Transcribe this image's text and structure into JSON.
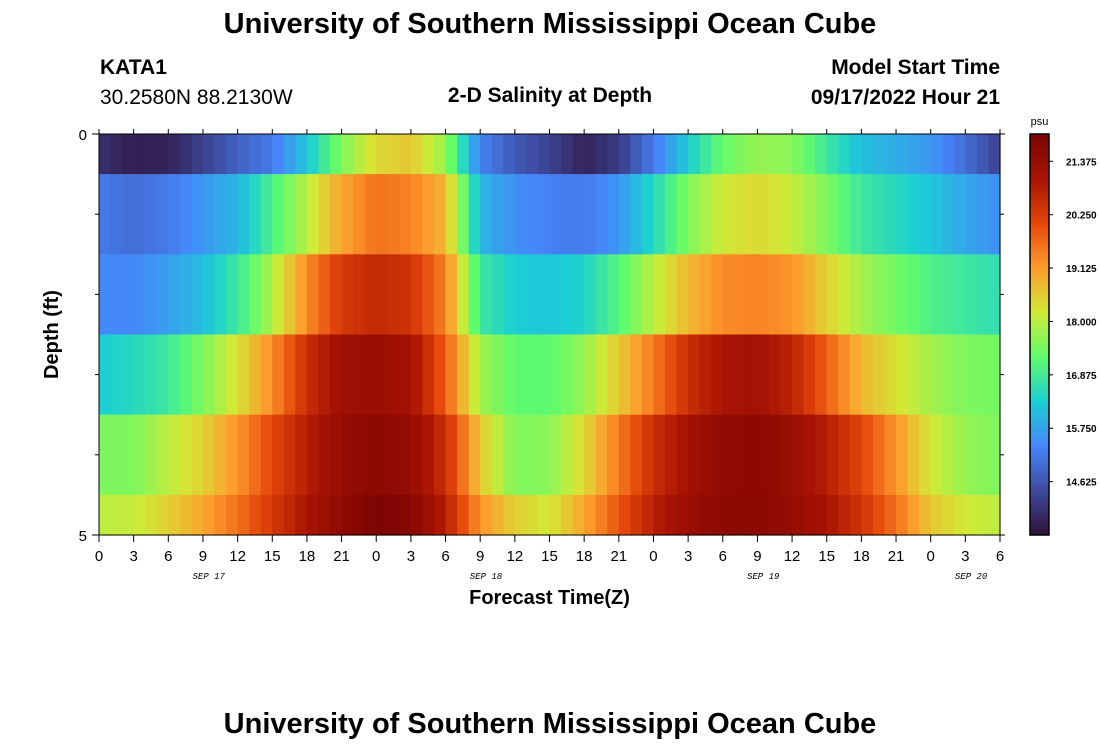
{
  "page": {
    "title_top": "University of Southern Mississippi Ocean Cube",
    "title_bottom": "University of Southern Mississippi Ocean Cube",
    "station": "KATA1",
    "coords": "30.2580N  88.2130W",
    "subtitle": "2-D Salinity at Depth",
    "model_start_label": "Model Start Time",
    "model_start_value": "09/17/2022 Hour 21"
  },
  "chart_data": {
    "type": "heatmap",
    "title": "2-D Salinity at Depth",
    "xlabel": "Forecast Time(Z)",
    "ylabel": "Depth (ft)",
    "x_start_hour": 0,
    "x_end_hour": 78,
    "x_tick_step_hours": 3,
    "x_tick_labels": [
      "0",
      "3",
      "6",
      "9",
      "12",
      "15",
      "18",
      "21",
      "0",
      "3",
      "6",
      "9",
      "12",
      "15",
      "18",
      "21",
      "0",
      "3",
      "6",
      "9",
      "12",
      "15",
      "18",
      "21",
      "0",
      "3",
      "6"
    ],
    "date_labels": [
      {
        "text": "SEP 17",
        "hour": 9.5
      },
      {
        "text": "SEP 18",
        "hour": 33.5
      },
      {
        "text": "SEP 19",
        "hour": 57.5
      },
      {
        "text": "SEP 20",
        "hour": 75.5
      }
    ],
    "y_range": [
      0,
      5
    ],
    "y_tick_labels": [
      {
        "value": 0,
        "text": "0"
      },
      {
        "value": 5,
        "text": "5"
      }
    ],
    "y_minor_ticks": [
      1,
      2,
      3,
      4
    ],
    "depth_bands": [
      0,
      0.5,
      1.5,
      2.5,
      3.5,
      4.5,
      5
    ],
    "anchor_hours": [
      0,
      3,
      6,
      9,
      12,
      15,
      18,
      21,
      24,
      27,
      30,
      33,
      36,
      39,
      42,
      45,
      48,
      51,
      54,
      57,
      60,
      63,
      66,
      69,
      72,
      75,
      78
    ],
    "salinity_rows": [
      [
        14.0,
        13.7,
        13.8,
        14.3,
        14.8,
        15.2,
        16.2,
        17.5,
        18.4,
        18.6,
        17.7,
        15.3,
        14.7,
        14.3,
        13.8,
        14.2,
        15.2,
        16.3,
        17.3,
        17.7,
        17.6,
        16.8,
        16.1,
        15.9,
        15.6,
        15.0,
        14.3
      ],
      [
        15.2,
        15.0,
        15.2,
        15.6,
        16.0,
        17.0,
        18.0,
        19.0,
        19.6,
        19.4,
        18.8,
        16.0,
        15.5,
        15.3,
        15.2,
        15.6,
        16.5,
        17.5,
        18.2,
        18.4,
        18.1,
        17.5,
        16.8,
        16.5,
        16.2,
        15.8,
        15.5
      ],
      [
        15.4,
        15.4,
        15.7,
        16.1,
        16.8,
        17.9,
        19.3,
        20.3,
        20.6,
        20.4,
        19.4,
        16.8,
        16.3,
        16.2,
        16.4,
        17.1,
        18.0,
        18.8,
        19.3,
        19.4,
        19.2,
        18.5,
        17.8,
        17.4,
        17.0,
        16.8,
        16.6
      ],
      [
        16.3,
        16.5,
        16.8,
        17.5,
        18.3,
        19.3,
        20.5,
        21.2,
        21.3,
        21.1,
        19.8,
        17.8,
        17.2,
        17.2,
        17.7,
        18.6,
        19.5,
        20.5,
        21.0,
        21.1,
        20.7,
        19.8,
        18.8,
        18.3,
        17.8,
        17.5,
        17.4
      ],
      [
        17.5,
        17.5,
        18.0,
        18.5,
        19.2,
        20.1,
        20.8,
        21.4,
        21.6,
        21.4,
        20.5,
        18.6,
        17.5,
        17.6,
        18.4,
        19.5,
        20.5,
        21.1,
        21.5,
        21.6,
        21.3,
        20.8,
        20.1,
        19.2,
        18.2,
        17.7,
        17.5
      ],
      [
        18.0,
        18.1,
        18.5,
        19.0,
        19.6,
        20.3,
        21.0,
        21.5,
        21.9,
        21.7,
        20.8,
        19.2,
        18.5,
        18.2,
        19.0,
        19.9,
        20.8,
        21.3,
        21.6,
        21.6,
        21.4,
        21.0,
        20.4,
        19.6,
        18.6,
        18.2,
        18.0
      ]
    ],
    "colorbar": {
      "unit": "psu",
      "min": 13.5,
      "max": 21.95,
      "tick_values": [
        14.625,
        15.75,
        16.875,
        18.0,
        19.125,
        20.25,
        21.375
      ],
      "tick_labels": [
        "14.625",
        "15.750",
        "16.875",
        "18.000",
        "19.125",
        "20.250",
        "21.375"
      ]
    },
    "colors": {
      "stops": [
        "#30123b",
        "#3e4a9e",
        "#4686fb",
        "#1bcfd4",
        "#61fc6c",
        "#d2e935",
        "#fe9b2d",
        "#e4460a",
        "#a81303",
        "#7a0403"
      ]
    }
  }
}
